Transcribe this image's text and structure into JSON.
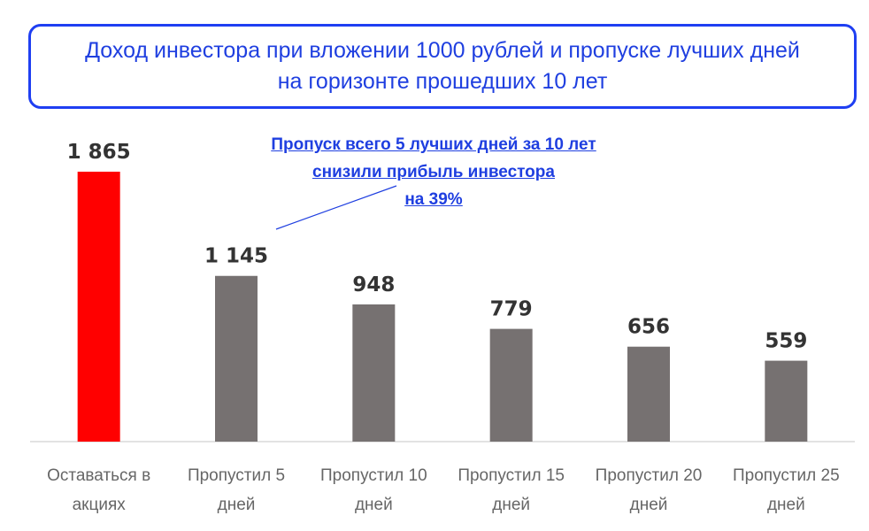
{
  "header": {
    "title_line1": "Доход инвестора при вложении 1000 рублей и пропуске лучших дней",
    "title_line2": "на горизонте прошедших 10 лет"
  },
  "annotation": {
    "line1": "Пропуск всего 5 лучших дней за 10 лет",
    "line2": "снизили прибыль инвестора",
    "line3": "на 39%"
  },
  "colors": {
    "highlight": "#ff0000",
    "bar": "#767171",
    "accent": "#1f3fe0"
  },
  "chart_data": {
    "type": "bar",
    "categories": [
      [
        "Оставаться в",
        "акциях"
      ],
      [
        "Пропустил 5",
        "дней"
      ],
      [
        "Пропустил 10",
        "дней"
      ],
      [
        "Пропустил 15",
        "дней"
      ],
      [
        "Пропустил 20",
        "дней"
      ],
      [
        "Пропустил 25",
        "дней"
      ]
    ],
    "values": [
      1865,
      1145,
      948,
      779,
      656,
      559
    ],
    "value_labels": [
      "1 865",
      "1 145",
      "948",
      "779",
      "656",
      "559"
    ],
    "highlight_index": 0,
    "ylim": [
      0,
      1865
    ],
    "grid": false,
    "legend": "none"
  }
}
